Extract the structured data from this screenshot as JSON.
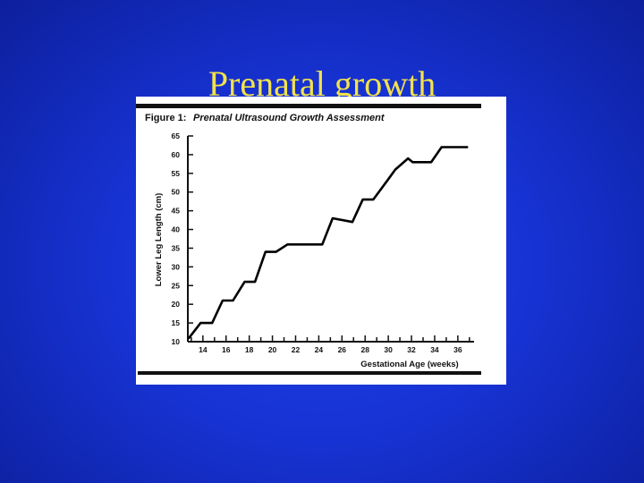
{
  "slide": {
    "title": "Prenatal growth",
    "background_color": "#1733d4",
    "title_color": "#f2e24a"
  },
  "figure": {
    "caption_label": "Figure 1:",
    "caption_title": "Prenatal Ultrasound Growth Assessment"
  },
  "chart_data": {
    "type": "line",
    "title": "Figure 1: Prenatal Ultrasound Growth Assessment",
    "xlabel": "Gestational Age (weeks)",
    "ylabel": "Lower Leg Length (cm)",
    "xlim": [
      12.7,
      37.4
    ],
    "ylim": [
      10,
      65
    ],
    "x_ticks": [
      14,
      16,
      18,
      20,
      22,
      24,
      26,
      28,
      30,
      32,
      34,
      36
    ],
    "x_tick_labels": [
      "14",
      "16",
      "18",
      "20",
      "22",
      "24",
      "26",
      "28",
      "30",
      "32",
      "34",
      "36"
    ],
    "y_ticks": [
      10,
      15,
      20,
      25,
      30,
      35,
      40,
      45,
      50,
      55,
      60,
      65
    ],
    "y_tick_labels": [
      "10",
      "15",
      "20",
      "25",
      "30",
      "35",
      "40",
      "45",
      "50",
      "55",
      "60",
      "65"
    ],
    "grid": false,
    "series": [
      {
        "x": [
          12.8,
          13.8,
          14.8,
          15.7,
          16.6,
          17.6,
          18.5,
          19.4,
          20.3,
          21.3,
          22.2,
          23.1,
          24.3,
          25.2,
          26.9,
          27.8,
          28.7,
          29.9,
          30.6,
          31.7,
          32.1,
          33.7,
          34.6,
          35.6,
          36.8
        ],
        "y": [
          11,
          15,
          15,
          21,
          21,
          26,
          26,
          34,
          34,
          36,
          36,
          36,
          36,
          43,
          42,
          48,
          48,
          53,
          56,
          59,
          58,
          58,
          62,
          62,
          62
        ]
      }
    ],
    "line_color": "#000000"
  }
}
